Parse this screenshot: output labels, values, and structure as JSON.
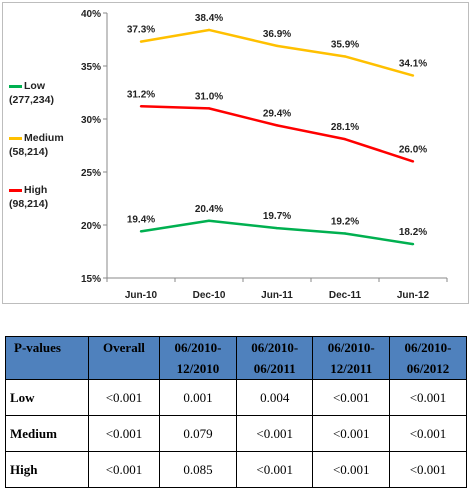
{
  "chart_data": {
    "type": "line",
    "categories": [
      "Jun-10",
      "Dec-10",
      "Jun-11",
      "Dec-11",
      "Jun-12"
    ],
    "ylim": [
      15,
      40
    ],
    "yticks": [
      "15%",
      "20%",
      "25%",
      "30%",
      "35%",
      "40%"
    ],
    "grid": false,
    "legend_position": "left",
    "series": [
      {
        "name": "Low",
        "count": "(277,234)",
        "color": "#00b050",
        "values": [
          19.4,
          20.4,
          19.7,
          19.2,
          18.2
        ],
        "labels": [
          "19.4%",
          "20.4%",
          "19.7%",
          "19.2%",
          "18.2%"
        ]
      },
      {
        "name": "Medium",
        "count": "(58,214)",
        "color": "#ffc000",
        "values": [
          37.3,
          38.4,
          36.9,
          35.9,
          34.1
        ],
        "labels": [
          "37.3%",
          "38.4%",
          "36.9%",
          "35.9%",
          "34.1%"
        ]
      },
      {
        "name": "High",
        "count": "(98,214)",
        "color": "#ff0000",
        "values": [
          31.2,
          31.0,
          29.4,
          28.1,
          26.0
        ],
        "labels": [
          "31.2%",
          "31.0%",
          "29.4%",
          "28.1%",
          "26.0%"
        ]
      }
    ]
  },
  "table": {
    "headers": [
      "P-values",
      "Overall",
      "06/2010-12/2010",
      "06/2010-06/2011",
      "06/2010-12/2011",
      "06/2010-06/2012"
    ],
    "rows": [
      [
        "Low",
        "<0.001",
        "0.001",
        "0.004",
        "<0.001",
        "<0.001"
      ],
      [
        "Medium",
        "<0.001",
        "0.079",
        "<0.001",
        "<0.001",
        "<0.001"
      ],
      [
        "High",
        "<0.001",
        "0.085",
        "<0.001",
        "<0.001",
        "<0.001"
      ]
    ]
  }
}
